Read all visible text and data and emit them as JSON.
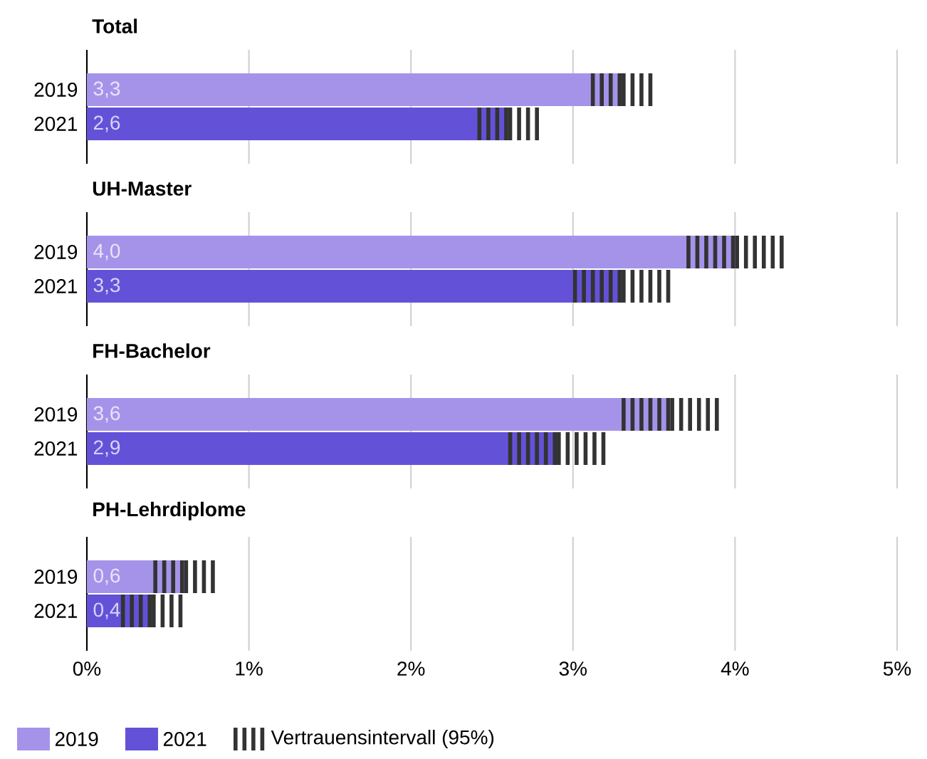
{
  "chart_data": [
    {
      "type": "bar",
      "orientation": "horizontal",
      "title": "Total",
      "categories": [
        "2019",
        "2021"
      ],
      "series": [
        {
          "color": "#a593ea",
          "values": [
            3.3,
            null
          ],
          "value_labels": [
            "3,3",
            null
          ],
          "errors": [
            0.2,
            null
          ]
        },
        {
          "color": "#6352d8",
          "values": [
            null,
            2.6
          ],
          "value_labels": [
            null,
            "2,6"
          ],
          "errors": [
            null,
            0.2
          ]
        }
      ],
      "xlim": [
        0,
        5
      ],
      "xticks": [
        {
          "value": 0,
          "label": null
        },
        {
          "value": 1,
          "label": null
        },
        {
          "value": 2,
          "label": null
        },
        {
          "value": 3,
          "label": null
        },
        {
          "value": 4,
          "label": null
        },
        {
          "value": 5,
          "label": null
        }
      ],
      "grid": "x",
      "tick_labels": "y"
    },
    {
      "type": "bar",
      "orientation": "horizontal",
      "title": "UH-Master",
      "categories": [
        "2019",
        "2021"
      ],
      "series": [
        {
          "color": "#a593ea",
          "values": [
            4.0,
            null
          ],
          "value_labels": [
            "4,0",
            null
          ],
          "errors": [
            0.3,
            null
          ]
        },
        {
          "color": "#6352d8",
          "values": [
            null,
            3.3
          ],
          "value_labels": [
            null,
            "3,3"
          ],
          "errors": [
            null,
            0.3
          ]
        }
      ],
      "xlim": [
        0,
        5
      ],
      "xticks": [
        {
          "value": 0,
          "label": null
        },
        {
          "value": 1,
          "label": null
        },
        {
          "value": 2,
          "label": null
        },
        {
          "value": 3,
          "label": null
        },
        {
          "value": 4,
          "label": null
        },
        {
          "value": 5,
          "label": null
        }
      ],
      "grid": "x",
      "tick_labels": "y"
    },
    {
      "type": "bar",
      "orientation": "horizontal",
      "title": "FH-Bachelor",
      "categories": [
        "2019",
        "2021"
      ],
      "series": [
        {
          "color": "#a593ea",
          "values": [
            3.6,
            null
          ],
          "value_labels": [
            "3,6",
            null
          ],
          "errors": [
            0.3,
            null
          ]
        },
        {
          "color": "#6352d8",
          "values": [
            null,
            2.9
          ],
          "value_labels": [
            null,
            "2,9"
          ],
          "errors": [
            null,
            0.3
          ]
        }
      ],
      "xlim": [
        0,
        5
      ],
      "xticks": [
        {
          "value": 0,
          "label": null
        },
        {
          "value": 1,
          "label": null
        },
        {
          "value": 2,
          "label": null
        },
        {
          "value": 3,
          "label": null
        },
        {
          "value": 4,
          "label": null
        },
        {
          "value": 5,
          "label": null
        }
      ],
      "grid": "x",
      "tick_labels": "y"
    },
    {
      "type": "bar",
      "orientation": "horizontal",
      "title": "PH-Lehrdiplome",
      "categories": [
        "2019",
        "2021"
      ],
      "series": [
        {
          "name": "2019",
          "color": "#a593ea",
          "values": [
            0.6,
            null
          ],
          "value_labels": [
            "0,6",
            null
          ],
          "errors": [
            0.2,
            null
          ]
        },
        {
          "name": "2021",
          "color": "#6352d8",
          "values": [
            null,
            0.4
          ],
          "value_labels": [
            null,
            "0,4"
          ],
          "errors": [
            null,
            0.2
          ]
        }
      ],
      "xlim": [
        0,
        5
      ],
      "xticks": [
        {
          "value": 0,
          "label": "0%"
        },
        {
          "value": 1,
          "label": "1%"
        },
        {
          "value": 2,
          "label": "2%"
        },
        {
          "value": 3,
          "label": "3%"
        },
        {
          "value": 4,
          "label": "4%"
        },
        {
          "value": 5,
          "label": "5%"
        }
      ],
      "grid": "x",
      "legend": "bottom",
      "annotations": [
        "Vertrauensintervall (95%)"
      ]
    }
  ]
}
